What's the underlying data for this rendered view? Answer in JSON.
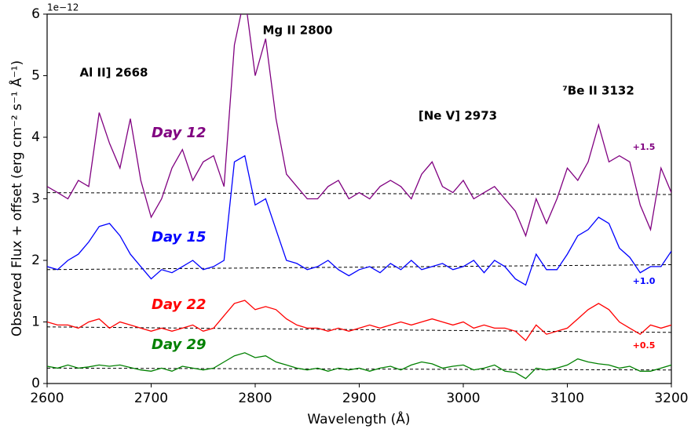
{
  "chart_data": {
    "type": "line",
    "xlabel": "Wavelength (Å)",
    "ylabel": "Observed Flux + offset (erg cm⁻² s⁻¹ Å⁻¹)",
    "y_scale_label": "1e−12",
    "x": [
      2600,
      2610,
      2620,
      2630,
      2640,
      2650,
      2660,
      2670,
      2680,
      2690,
      2700,
      2710,
      2720,
      2730,
      2740,
      2750,
      2760,
      2770,
      2780,
      2790,
      2800,
      2810,
      2820,
      2830,
      2840,
      2850,
      2860,
      2870,
      2880,
      2890,
      2900,
      2910,
      2920,
      2930,
      2940,
      2950,
      2960,
      2970,
      2980,
      2990,
      3000,
      3010,
      3020,
      3030,
      3040,
      3050,
      3060,
      3070,
      3080,
      3090,
      3100,
      3110,
      3120,
      3130,
      3140,
      3150,
      3160,
      3170,
      3180,
      3190,
      3200
    ],
    "series": [
      {
        "name": "Day 12",
        "color": "#800080",
        "offset_label": "+1.5",
        "values": [
          3.2,
          3.1,
          3.0,
          3.3,
          3.2,
          4.4,
          3.9,
          3.5,
          4.3,
          3.3,
          2.7,
          3.0,
          3.5,
          3.8,
          3.3,
          3.6,
          3.7,
          3.2,
          5.5,
          6.3,
          5.0,
          5.6,
          4.3,
          3.4,
          3.2,
          3.0,
          3.0,
          3.2,
          3.3,
          3.0,
          3.1,
          3.0,
          3.2,
          3.3,
          3.2,
          3.0,
          3.4,
          3.6,
          3.2,
          3.1,
          3.3,
          3.0,
          3.1,
          3.2,
          3.0,
          2.8,
          2.4,
          3.0,
          2.6,
          3.0,
          3.5,
          3.3,
          3.6,
          4.2,
          3.6,
          3.7,
          3.6,
          2.9,
          2.5,
          3.5,
          3.1
        ]
      },
      {
        "name": "Day 15",
        "color": "#0000ff",
        "offset_label": "+1.0",
        "values": [
          1.9,
          1.85,
          2.0,
          2.1,
          2.3,
          2.55,
          2.6,
          2.4,
          2.1,
          1.9,
          1.7,
          1.85,
          1.8,
          1.9,
          2.0,
          1.85,
          1.9,
          2.0,
          3.6,
          3.7,
          2.9,
          3.0,
          2.5,
          2.0,
          1.95,
          1.85,
          1.9,
          2.0,
          1.85,
          1.75,
          1.85,
          1.9,
          1.8,
          1.95,
          1.85,
          2.0,
          1.85,
          1.9,
          1.95,
          1.85,
          1.9,
          2.0,
          1.8,
          2.0,
          1.9,
          1.7,
          1.6,
          2.1,
          1.85,
          1.85,
          2.1,
          2.4,
          2.5,
          2.7,
          2.6,
          2.2,
          2.05,
          1.8,
          1.9,
          1.9,
          2.15
        ]
      },
      {
        "name": "Day 22",
        "color": "#ff0000",
        "offset_label": "+0.5",
        "values": [
          1.0,
          0.95,
          0.95,
          0.9,
          1.0,
          1.05,
          0.9,
          1.0,
          0.95,
          0.9,
          0.85,
          0.9,
          0.85,
          0.9,
          0.95,
          0.85,
          0.9,
          1.1,
          1.3,
          1.35,
          1.2,
          1.25,
          1.2,
          1.05,
          0.95,
          0.9,
          0.9,
          0.85,
          0.9,
          0.85,
          0.9,
          0.95,
          0.9,
          0.95,
          1.0,
          0.95,
          1.0,
          1.05,
          1.0,
          0.95,
          1.0,
          0.9,
          0.95,
          0.9,
          0.9,
          0.85,
          0.7,
          0.95,
          0.8,
          0.85,
          0.9,
          1.05,
          1.2,
          1.3,
          1.2,
          1.0,
          0.9,
          0.8,
          0.95,
          0.9,
          0.95
        ]
      },
      {
        "name": "Day 29",
        "color": "#008000",
        "values": [
          0.28,
          0.25,
          0.3,
          0.25,
          0.27,
          0.3,
          0.28,
          0.3,
          0.26,
          0.22,
          0.2,
          0.25,
          0.2,
          0.28,
          0.25,
          0.22,
          0.25,
          0.35,
          0.45,
          0.5,
          0.42,
          0.45,
          0.35,
          0.3,
          0.25,
          0.22,
          0.25,
          0.2,
          0.25,
          0.22,
          0.25,
          0.2,
          0.25,
          0.28,
          0.22,
          0.3,
          0.35,
          0.32,
          0.25,
          0.28,
          0.3,
          0.22,
          0.25,
          0.3,
          0.2,
          0.18,
          0.08,
          0.25,
          0.22,
          0.25,
          0.3,
          0.4,
          0.35,
          0.32,
          0.3,
          0.25,
          0.28,
          0.2,
          0.2,
          0.25,
          0.3
        ]
      }
    ],
    "reference_lines": [
      {
        "values": [
          3.1,
          3.07
        ]
      },
      {
        "values": [
          1.85,
          1.93
        ]
      },
      {
        "values": [
          0.92,
          0.83
        ]
      },
      {
        "values": [
          0.25,
          0.22
        ]
      }
    ],
    "annotations": [
      "Mg II 2800",
      "Al II] 2668",
      "[Ne V] 2973",
      "⁷Be II 3132"
    ],
    "xlim": [
      2600,
      3200
    ],
    "xticks": [
      2600,
      2700,
      2800,
      2900,
      3000,
      3100,
      3200
    ],
    "ylim": [
      0,
      6
    ],
    "yticks": [
      0,
      1,
      2,
      3,
      4,
      5,
      6
    ]
  }
}
